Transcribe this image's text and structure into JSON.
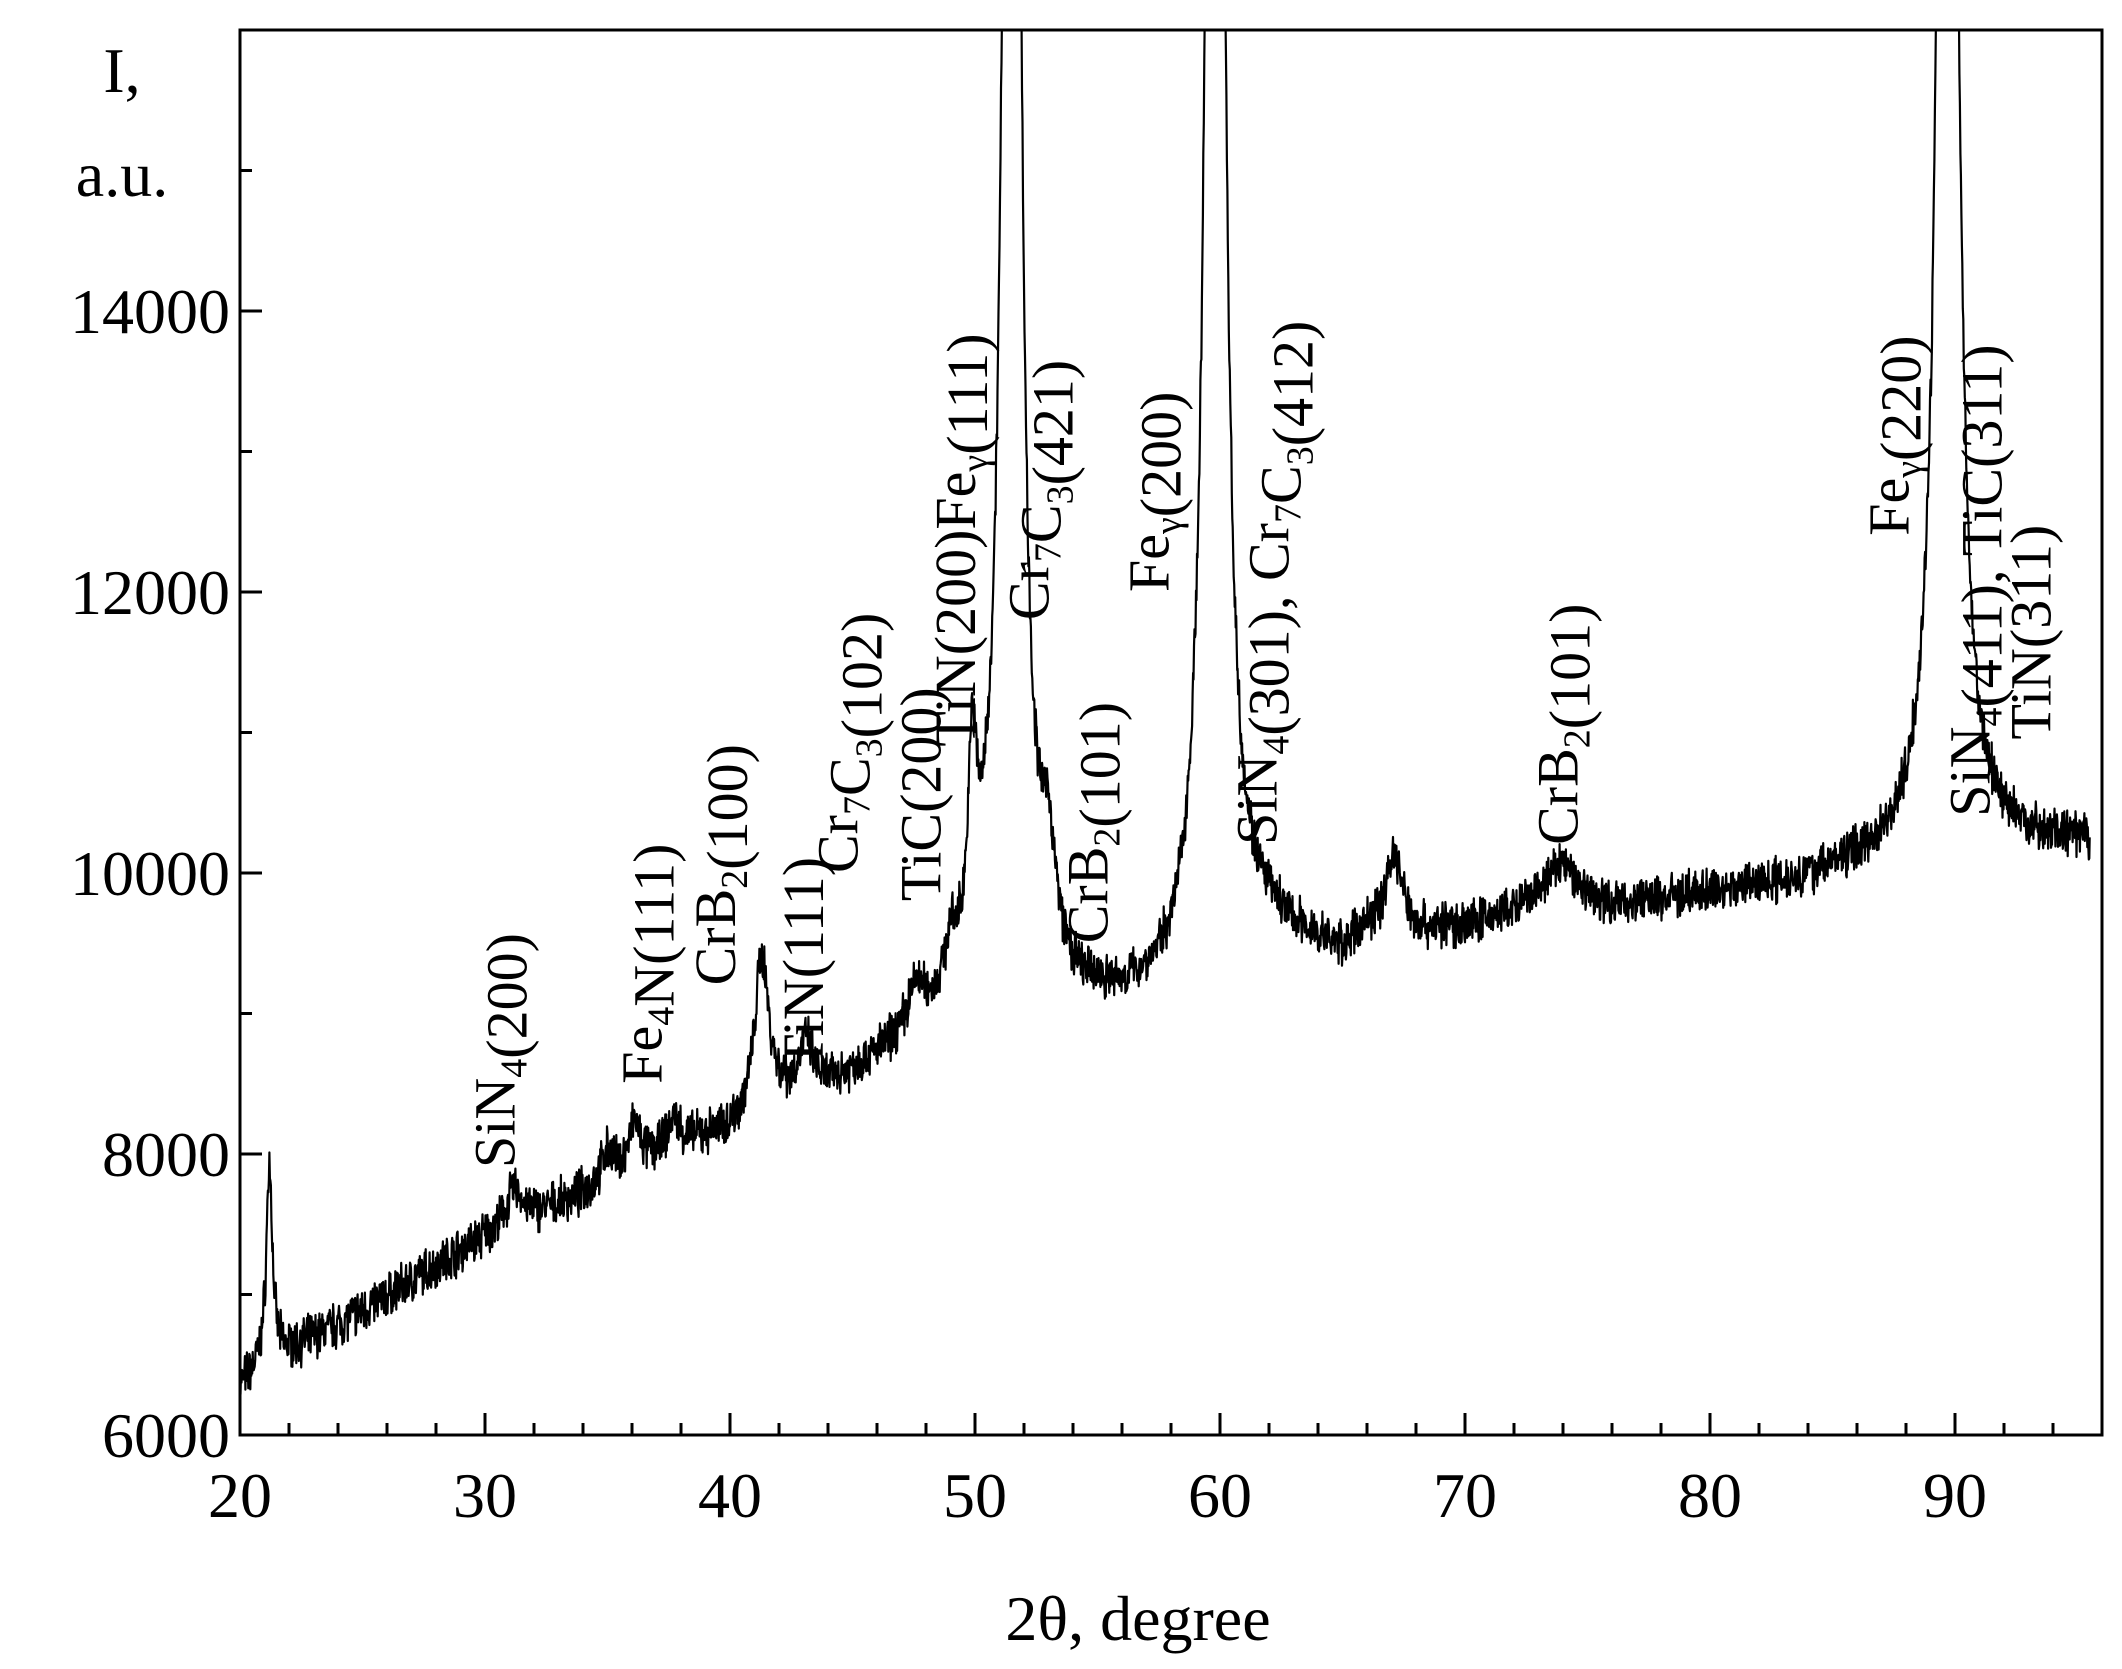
{
  "chart_data": {
    "type": "line",
    "title": "",
    "xlabel": "2θ, degree",
    "ylabel_line1": "I,",
    "ylabel_line2": "a.u.",
    "xlim": [
      20,
      96
    ],
    "ylim": [
      6000,
      16000
    ],
    "x_ticks": [
      20,
      30,
      40,
      50,
      60,
      70,
      80,
      90
    ],
    "x_tick_labels": [
      "20",
      "30",
      "40",
      "50",
      "60",
      "70",
      "80",
      "90"
    ],
    "y_ticks": [
      6000,
      8000,
      10000,
      12000,
      14000
    ],
    "y_tick_labels": [
      "6000",
      "8000",
      "10000",
      "12000",
      "14000"
    ],
    "grid": false,
    "line_color": "#000000",
    "series": [
      {
        "baseline": [
          [
            20.0,
            6350
          ],
          [
            21.0,
            6500
          ],
          [
            22.0,
            6600
          ],
          [
            24.0,
            6780
          ],
          [
            26.0,
            6980
          ],
          [
            28.0,
            7200
          ],
          [
            30.0,
            7400
          ],
          [
            32.0,
            7550
          ],
          [
            34.0,
            7700
          ],
          [
            36.0,
            7900
          ],
          [
            38.0,
            8050
          ],
          [
            40.0,
            8150
          ],
          [
            41.0,
            8250
          ],
          [
            42.0,
            8350
          ],
          [
            44.0,
            8450
          ],
          [
            46.0,
            8650
          ],
          [
            48.0,
            8850
          ],
          [
            49.0,
            9000
          ],
          [
            50.0,
            9300
          ],
          [
            51.0,
            9600
          ],
          [
            52.0,
            9300
          ],
          [
            53.0,
            9150
          ],
          [
            54.0,
            9050
          ],
          [
            56.0,
            9050
          ],
          [
            58.0,
            9150
          ],
          [
            59.0,
            9300
          ],
          [
            60.5,
            9500
          ],
          [
            62.0,
            9550
          ],
          [
            64.0,
            9450
          ],
          [
            65.0,
            9400
          ],
          [
            66.0,
            9550
          ],
          [
            68.0,
            9550
          ],
          [
            70.0,
            9600
          ],
          [
            72.0,
            9700
          ],
          [
            74.0,
            9850
          ],
          [
            76.0,
            9750
          ],
          [
            78.0,
            9800
          ],
          [
            80.0,
            9850
          ],
          [
            82.0,
            9900
          ],
          [
            84.0,
            9950
          ],
          [
            86.0,
            10050
          ],
          [
            88.0,
            10150
          ],
          [
            89.0,
            10300
          ],
          [
            91.0,
            10200
          ],
          [
            96.0,
            10200
          ]
        ],
        "peaks": [
          [
            21.2,
            1400,
            0.15
          ],
          [
            31.2,
            250,
            0.4
          ],
          [
            35.0,
            200,
            0.3
          ],
          [
            36.1,
            300,
            0.25
          ],
          [
            37.7,
            200,
            0.3
          ],
          [
            41.3,
            1100,
            0.35
          ],
          [
            43.1,
            350,
            0.35
          ],
          [
            47.6,
            300,
            0.4
          ],
          [
            49.0,
            300,
            0.3
          ],
          [
            49.9,
            1300,
            0.2
          ],
          [
            51.5,
            20000,
            0.28
          ],
          [
            53.0,
            700,
            0.35
          ],
          [
            59.8,
            20000,
            0.3
          ],
          [
            67.1,
            550,
            0.4
          ],
          [
            73.9,
            200,
            0.7
          ],
          [
            89.7,
            20000,
            0.3
          ]
        ]
      }
    ],
    "annotations": [
      {
        "text": "SiN4(200)",
        "x": 31.2,
        "y": 7900
      },
      {
        "text": "Fe4N(111)",
        "x": 37.2,
        "y": 8500
      },
      {
        "text": "CrB2(100)",
        "x": 40.2,
        "y": 9200
      },
      {
        "text": "TiN(111)",
        "x": 43.8,
        "y": 8600
      },
      {
        "text": "Cr7C3(102)",
        "x": 45.2,
        "y": 10000
      },
      {
        "text": "TiC(200)",
        "x": 48.6,
        "y": 9800
      },
      {
        "text": "TiN(200)Feγ(111)",
        "x": 50.0,
        "y": 10900
      },
      {
        "text": "Cr7C3(421)",
        "x": 53.0,
        "y": 11800
      },
      {
        "text": "CrB2(101)",
        "x": 55.4,
        "y": 9500
      },
      {
        "text": "Feγ(200)",
        "x": 57.9,
        "y": 12000
      },
      {
        "text": "SiN4(301), Cr7C3(412)",
        "x": 62.3,
        "y": 10200
      },
      {
        "text": "CrB2(101)",
        "x": 74.6,
        "y": 10200
      },
      {
        "text": "Feγ(220)",
        "x": 88.1,
        "y": 12400
      },
      {
        "text": "SiN4(411), TiC(311)",
        "x": 91.4,
        "y": 10400
      },
      {
        "text": "TiN(311)",
        "x": 93.9,
        "y": 10950
      }
    ]
  }
}
